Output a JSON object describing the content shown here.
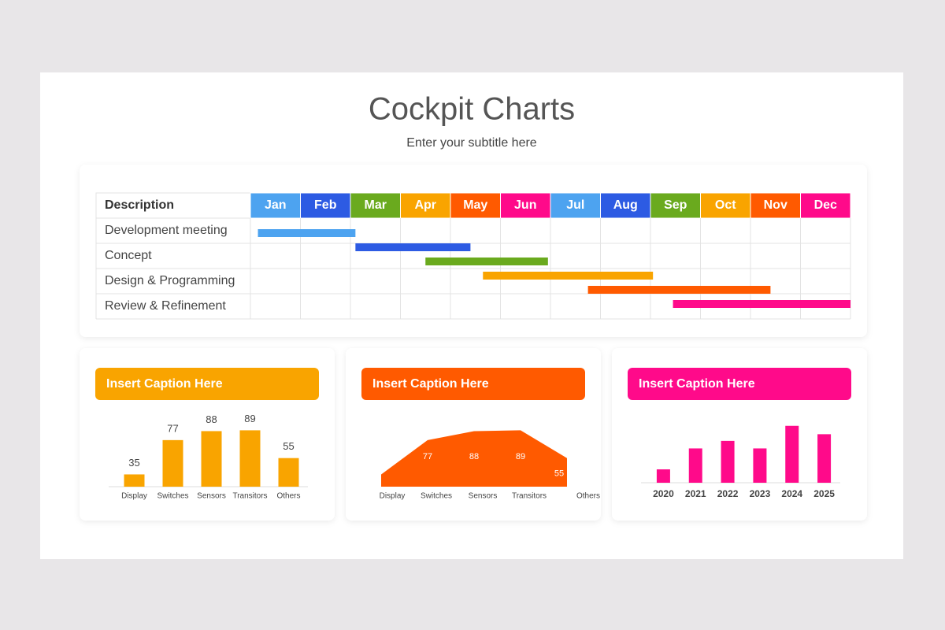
{
  "title": "Cockpit Charts",
  "subtitle": "Enter your subtitle here",
  "chart_data": [
    {
      "type": "gantt",
      "header": "Description",
      "categories": [
        "Jan",
        "Feb",
        "Mar",
        "Apr",
        "May",
        "Jun",
        "Jul",
        "Aug",
        "Sep",
        "Oct",
        "Nov",
        "Dec"
      ],
      "header_colors": [
        "#4da3f0",
        "#2d5be3",
        "#6aaa1e",
        "#f9a400",
        "#ff5a00",
        "#ff0a8a",
        "#4da3f0",
        "#2d5be3",
        "#6aaa1e",
        "#f9a400",
        "#ff5a00",
        "#ff0a8a"
      ],
      "rows": [
        "Development meeting",
        "Concept",
        "Design & Programming",
        "Review & Refinement"
      ],
      "bars": [
        {
          "start": 0.15,
          "end": 2.1,
          "color": "#4da3f0"
        },
        {
          "start": 2.1,
          "end": 4.4,
          "color": "#2d5be3"
        },
        {
          "start": 3.5,
          "end": 5.95,
          "color": "#6aaa1e"
        },
        {
          "start": 4.65,
          "end": 8.05,
          "color": "#f9a400"
        },
        {
          "start": 6.75,
          "end": 10.4,
          "color": "#ff5a00"
        },
        {
          "start": 8.45,
          "end": 12,
          "color": "#ff0a8a"
        }
      ],
      "xlim": [
        0,
        12
      ]
    },
    {
      "type": "bar",
      "title": "Insert Caption Here",
      "title_color": "#f9a400",
      "categories": [
        "Display",
        "Switches",
        "Sensors",
        "Transitors",
        "Others"
      ],
      "values": [
        35,
        77,
        88,
        89,
        55
      ],
      "color": "#f9a400",
      "ylim": [
        20,
        100
      ],
      "data_labels": true
    },
    {
      "type": "area",
      "title": "Insert Caption Here",
      "title_color": "#ff5a00",
      "categories": [
        "Display",
        "Switches",
        "Sensors",
        "Transitors",
        "Others"
      ],
      "values": [
        35,
        77,
        88,
        89,
        55
      ],
      "color": "#ff5a00",
      "ylim": [
        20,
        100
      ],
      "data_labels": true
    },
    {
      "type": "bar",
      "title": "Insert Caption Here",
      "title_color": "#ff0a8a",
      "categories": [
        "2020",
        "2021",
        "2022",
        "2023",
        "2024",
        "2025"
      ],
      "values": [
        16,
        41,
        50,
        41,
        68,
        58
      ],
      "color": "#ff0a8a",
      "ylim": [
        0,
        80
      ],
      "data_labels": false
    }
  ]
}
